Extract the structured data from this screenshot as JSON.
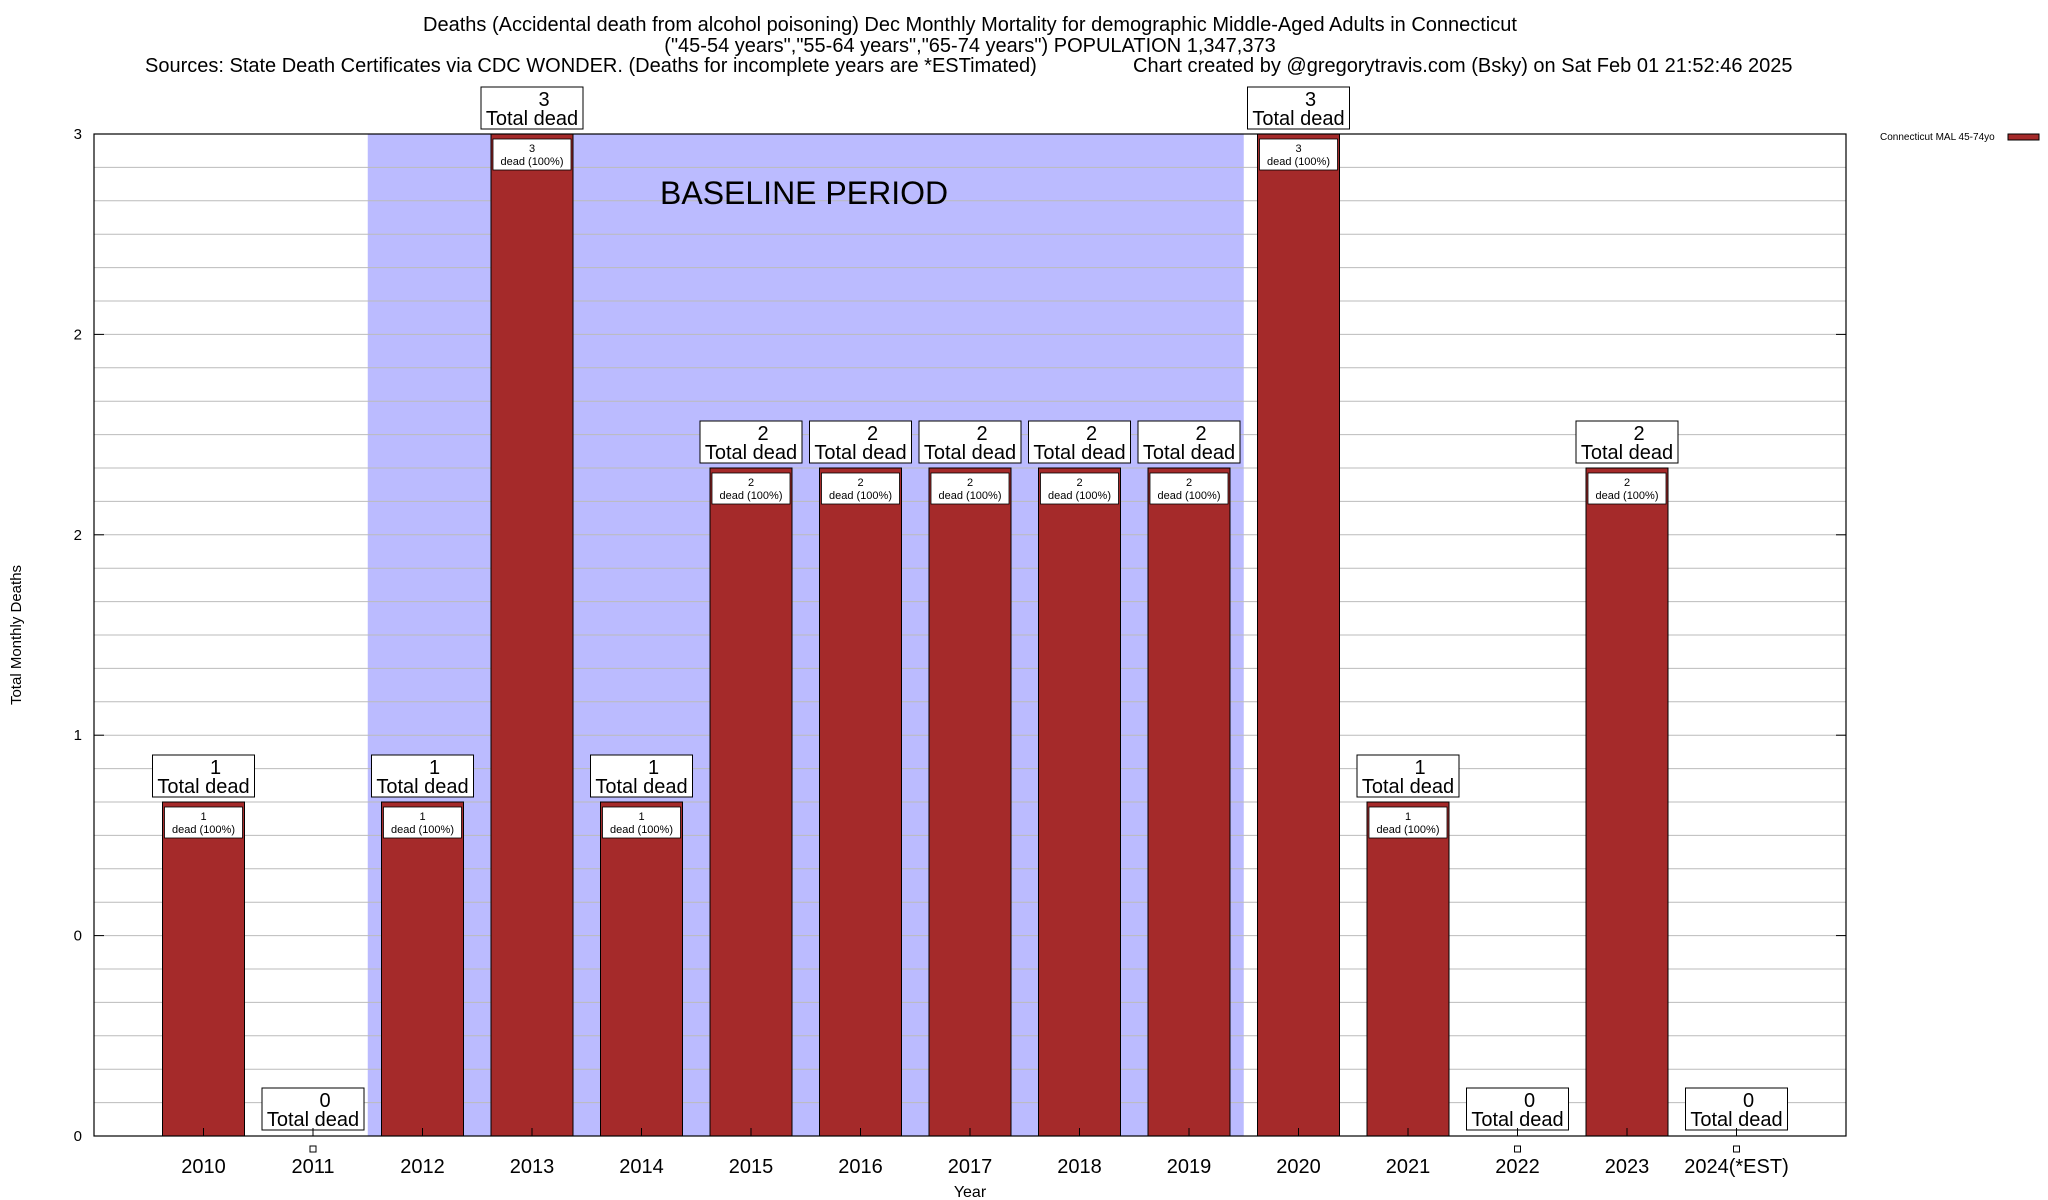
{
  "chart_data": {
    "type": "bar",
    "title_lines": [
      "Deaths (Accidental death from alcohol poisoning) Dec Monthly Mortality for demographic Middle-Aged Adults in Connecticut",
      "(\"45-54 years\",\"55-64 years\",\"65-74 years\") POPULATION 1,347,373"
    ],
    "sources": "Sources: State Death Certificates via CDC WONDER. (Deaths for incomplete years are *ESTimated)",
    "credit": "Chart created by @gregorytravis.com (Bsky) on Sat Feb 01 21:52:46 2025",
    "xlabel": "Year",
    "ylabel": "Total Monthly Deaths",
    "ylim": [
      0,
      3
    ],
    "y_tick_labels": [
      "0",
      "0",
      "1",
      "2",
      "2",
      "3"
    ],
    "categories": [
      "2010",
      "2011",
      "2012",
      "2013",
      "2014",
      "2015",
      "2016",
      "2017",
      "2018",
      "2019",
      "2020",
      "2021",
      "2022",
      "2023",
      "2024(*EST)"
    ],
    "values": [
      1,
      0,
      1,
      3,
      1,
      2,
      2,
      2,
      2,
      2,
      3,
      1,
      0,
      2,
      0
    ],
    "total_label_suffix": "Total dead",
    "inner_label_suffix": "dead (100%)",
    "baseline": {
      "label": "BASELINE PERIOD",
      "start": "2012",
      "end": "2019"
    },
    "legend": {
      "label": "Connecticut MAL 45-74yo",
      "position": "top-right"
    },
    "colors": {
      "bar": "#a52a2a",
      "baseline": "#bbbbff",
      "grid": "#bbbbbb"
    }
  }
}
